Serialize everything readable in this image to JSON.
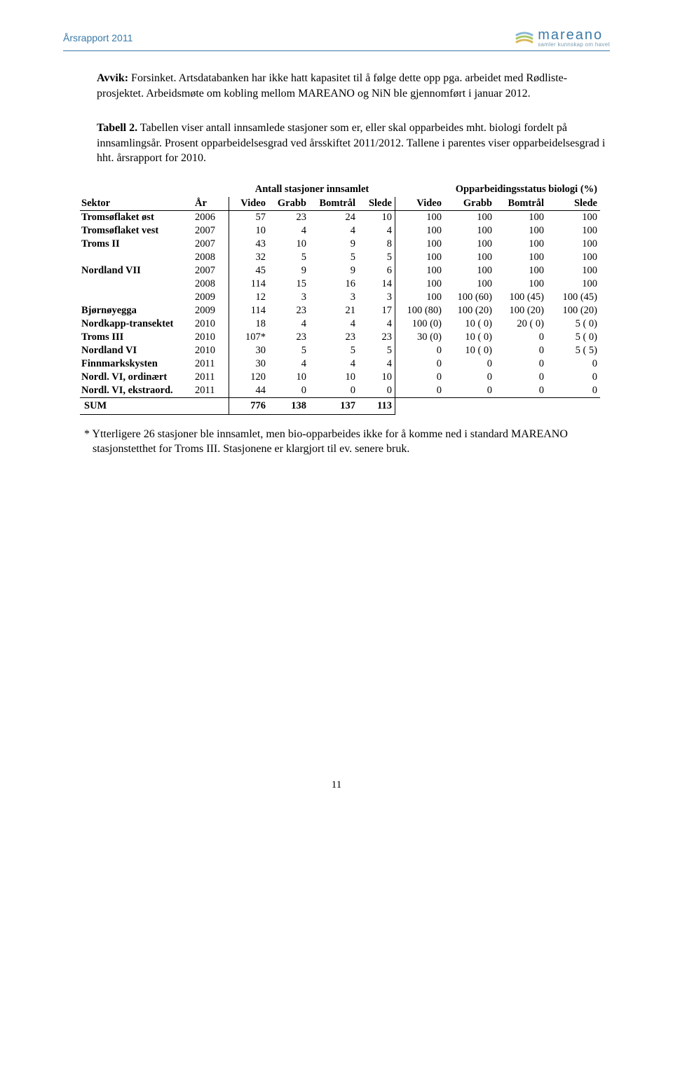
{
  "header": {
    "left": "Årsrapport 2011",
    "logo_main": "mareano",
    "logo_sub": "samler kunnskap om havet"
  },
  "para1_bold": "Avvik:",
  "para1_rest": " Forsinket. Artsdatabanken har ikke hatt kapasitet til å følge dette opp pga. arbeidet med Rødliste-prosjektet. Arbeidsmøte om kobling mellom MAREANO og NiN ble gjennomført i januar 2012.",
  "para2_bold": "Tabell 2.",
  "para2_rest": " Tabellen viser antall innsamlede stasjoner som er, eller skal opparbeides mht. biologi fordelt på innsamlingsår. Prosent opparbeidelsesgrad ved årsskiftet 2011/2012. Tallene i parentes viser opparbeidelsesgrad i hht. årsrapport for 2010.",
  "table": {
    "group1": "Antall stasjoner innsamlet",
    "group2": "Opparbeidingsstatus biologi (%)",
    "cols": {
      "sector": "Sektor",
      "year": "År",
      "video": "Video",
      "grabb": "Grabb",
      "bom": "Bomtrål",
      "slede": "Slede",
      "video2": "Video",
      "grabb2": "Grabb",
      "bom2": "Bomtrål",
      "slede2": "Slede"
    },
    "rows": [
      {
        "sector": "Tromsøflaket øst",
        "year": "2006",
        "v": "57",
        "g": "23",
        "b": "24",
        "s": "10",
        "v2": "100",
        "g2": "100",
        "b2": "100",
        "s2": "100"
      },
      {
        "sector": "Tromsøflaket vest",
        "year": "2007",
        "v": "10",
        "g": "4",
        "b": "4",
        "s": "4",
        "v2": "100",
        "g2": "100",
        "b2": "100",
        "s2": "100"
      },
      {
        "sector": "Troms II",
        "year": "2007",
        "v": "43",
        "g": "10",
        "b": "9",
        "s": "8",
        "v2": "100",
        "g2": "100",
        "b2": "100",
        "s2": "100"
      },
      {
        "sector": "",
        "year": "2008",
        "v": "32",
        "g": "5",
        "b": "5",
        "s": "5",
        "v2": "100",
        "g2": "100",
        "b2": "100",
        "s2": "100"
      },
      {
        "sector": "Nordland VII",
        "year": "2007",
        "v": "45",
        "g": "9",
        "b": "9",
        "s": "6",
        "v2": "100",
        "g2": "100",
        "b2": "100",
        "s2": "100"
      },
      {
        "sector": "",
        "year": "2008",
        "v": "114",
        "g": "15",
        "b": "16",
        "s": "14",
        "v2": "100",
        "g2": "100",
        "b2": "100",
        "s2": "100"
      },
      {
        "sector": "",
        "year": "2009",
        "v": "12",
        "g": "3",
        "b": "3",
        "s": "3",
        "v2": "100",
        "g2": "100 (60)",
        "b2": "100 (45)",
        "s2": "100 (45)"
      },
      {
        "sector": "Bjørnøyegga",
        "year": "2009",
        "v": "114",
        "g": "23",
        "b": "21",
        "s": "17",
        "v2": "100 (80)",
        "g2": "100 (20)",
        "b2": "100 (20)",
        "s2": "100 (20)"
      },
      {
        "sector": "Nordkapp-transektet",
        "year": "2010",
        "v": "18",
        "g": "4",
        "b": "4",
        "s": "4",
        "v2": "100 (0)",
        "g2": "10 (  0)",
        "b2": "20 (  0)",
        "s2": "5 (  0)"
      },
      {
        "sector": "Troms III",
        "year": "2010",
        "v": "107*",
        "g": "23",
        "b": "23",
        "s": "23",
        "v2": "30 (0)",
        "g2": "10 (  0)",
        "b2": "0",
        "s2": "5 (  0)"
      },
      {
        "sector": "Nordland VI",
        "year": "2010",
        "v": "30",
        "g": "5",
        "b": "5",
        "s": "5",
        "v2": "0",
        "g2": "10 (  0)",
        "b2": "0",
        "s2": "5 (  5)"
      },
      {
        "sector": "Finnmarkskysten",
        "year": "2011",
        "v": "30",
        "g": "4",
        "b": "4",
        "s": "4",
        "v2": "0",
        "g2": "0",
        "b2": "0",
        "s2": "0"
      },
      {
        "sector": "Nordl. VI, ordinært",
        "year": "2011",
        "v": "120",
        "g": "10",
        "b": "10",
        "s": "10",
        "v2": "0",
        "g2": "0",
        "b2": "0",
        "s2": "0"
      },
      {
        "sector": "Nordl. VI, ekstraord.",
        "year": "2011",
        "v": "44",
        "g": "0",
        "b": "0",
        "s": "0",
        "v2": "0",
        "g2": "0",
        "b2": "0",
        "s2": "0"
      }
    ],
    "sum": {
      "label": "SUM",
      "v": "776",
      "g": "138",
      "b": "137",
      "s": "113"
    }
  },
  "footnote": "* Ytterligere 26 stasjoner ble innsamlet, men bio-opparbeides ikke for å komme ned i standard MAREANO stasjonstetthet for Troms III. Stasjonene er klargjort til ev. senere bruk.",
  "page_number": "11"
}
